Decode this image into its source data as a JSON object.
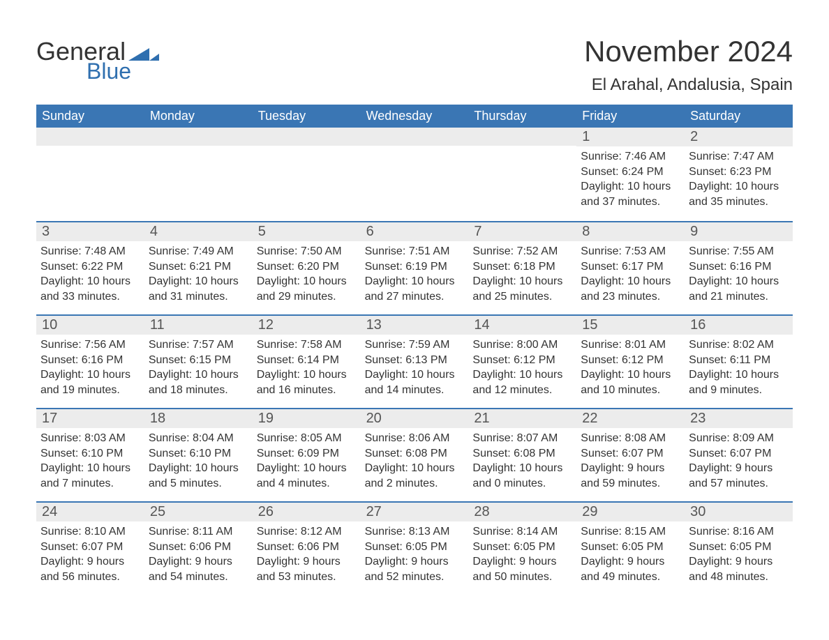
{
  "logo": {
    "word1": "General",
    "word2": "Blue",
    "tri_color": "#2f6faf"
  },
  "title": "November 2024",
  "location": "El Arahal, Andalusia, Spain",
  "colors": {
    "header_bg": "#3a76b4",
    "header_text": "#ffffff",
    "daynum_bg": "#ececec",
    "row_border": "#3a76b4",
    "body_text": "#333333",
    "logo_blue": "#2f6faf"
  },
  "weekdays": [
    "Sunday",
    "Monday",
    "Tuesday",
    "Wednesday",
    "Thursday",
    "Friday",
    "Saturday"
  ],
  "weeks": [
    [
      {
        "empty": true
      },
      {
        "empty": true
      },
      {
        "empty": true
      },
      {
        "empty": true
      },
      {
        "empty": true
      },
      {
        "day": "1",
        "sunrise": "Sunrise: 7:46 AM",
        "sunset": "Sunset: 6:24 PM",
        "dl1": "Daylight: 10 hours",
        "dl2": "and 37 minutes."
      },
      {
        "day": "2",
        "sunrise": "Sunrise: 7:47 AM",
        "sunset": "Sunset: 6:23 PM",
        "dl1": "Daylight: 10 hours",
        "dl2": "and 35 minutes."
      }
    ],
    [
      {
        "day": "3",
        "sunrise": "Sunrise: 7:48 AM",
        "sunset": "Sunset: 6:22 PM",
        "dl1": "Daylight: 10 hours",
        "dl2": "and 33 minutes."
      },
      {
        "day": "4",
        "sunrise": "Sunrise: 7:49 AM",
        "sunset": "Sunset: 6:21 PM",
        "dl1": "Daylight: 10 hours",
        "dl2": "and 31 minutes."
      },
      {
        "day": "5",
        "sunrise": "Sunrise: 7:50 AM",
        "sunset": "Sunset: 6:20 PM",
        "dl1": "Daylight: 10 hours",
        "dl2": "and 29 minutes."
      },
      {
        "day": "6",
        "sunrise": "Sunrise: 7:51 AM",
        "sunset": "Sunset: 6:19 PM",
        "dl1": "Daylight: 10 hours",
        "dl2": "and 27 minutes."
      },
      {
        "day": "7",
        "sunrise": "Sunrise: 7:52 AM",
        "sunset": "Sunset: 6:18 PM",
        "dl1": "Daylight: 10 hours",
        "dl2": "and 25 minutes."
      },
      {
        "day": "8",
        "sunrise": "Sunrise: 7:53 AM",
        "sunset": "Sunset: 6:17 PM",
        "dl1": "Daylight: 10 hours",
        "dl2": "and 23 minutes."
      },
      {
        "day": "9",
        "sunrise": "Sunrise: 7:55 AM",
        "sunset": "Sunset: 6:16 PM",
        "dl1": "Daylight: 10 hours",
        "dl2": "and 21 minutes."
      }
    ],
    [
      {
        "day": "10",
        "sunrise": "Sunrise: 7:56 AM",
        "sunset": "Sunset: 6:16 PM",
        "dl1": "Daylight: 10 hours",
        "dl2": "and 19 minutes."
      },
      {
        "day": "11",
        "sunrise": "Sunrise: 7:57 AM",
        "sunset": "Sunset: 6:15 PM",
        "dl1": "Daylight: 10 hours",
        "dl2": "and 18 minutes."
      },
      {
        "day": "12",
        "sunrise": "Sunrise: 7:58 AM",
        "sunset": "Sunset: 6:14 PM",
        "dl1": "Daylight: 10 hours",
        "dl2": "and 16 minutes."
      },
      {
        "day": "13",
        "sunrise": "Sunrise: 7:59 AM",
        "sunset": "Sunset: 6:13 PM",
        "dl1": "Daylight: 10 hours",
        "dl2": "and 14 minutes."
      },
      {
        "day": "14",
        "sunrise": "Sunrise: 8:00 AM",
        "sunset": "Sunset: 6:12 PM",
        "dl1": "Daylight: 10 hours",
        "dl2": "and 12 minutes."
      },
      {
        "day": "15",
        "sunrise": "Sunrise: 8:01 AM",
        "sunset": "Sunset: 6:12 PM",
        "dl1": "Daylight: 10 hours",
        "dl2": "and 10 minutes."
      },
      {
        "day": "16",
        "sunrise": "Sunrise: 8:02 AM",
        "sunset": "Sunset: 6:11 PM",
        "dl1": "Daylight: 10 hours",
        "dl2": "and 9 minutes."
      }
    ],
    [
      {
        "day": "17",
        "sunrise": "Sunrise: 8:03 AM",
        "sunset": "Sunset: 6:10 PM",
        "dl1": "Daylight: 10 hours",
        "dl2": "and 7 minutes."
      },
      {
        "day": "18",
        "sunrise": "Sunrise: 8:04 AM",
        "sunset": "Sunset: 6:10 PM",
        "dl1": "Daylight: 10 hours",
        "dl2": "and 5 minutes."
      },
      {
        "day": "19",
        "sunrise": "Sunrise: 8:05 AM",
        "sunset": "Sunset: 6:09 PM",
        "dl1": "Daylight: 10 hours",
        "dl2": "and 4 minutes."
      },
      {
        "day": "20",
        "sunrise": "Sunrise: 8:06 AM",
        "sunset": "Sunset: 6:08 PM",
        "dl1": "Daylight: 10 hours",
        "dl2": "and 2 minutes."
      },
      {
        "day": "21",
        "sunrise": "Sunrise: 8:07 AM",
        "sunset": "Sunset: 6:08 PM",
        "dl1": "Daylight: 10 hours",
        "dl2": "and 0 minutes."
      },
      {
        "day": "22",
        "sunrise": "Sunrise: 8:08 AM",
        "sunset": "Sunset: 6:07 PM",
        "dl1": "Daylight: 9 hours",
        "dl2": "and 59 minutes."
      },
      {
        "day": "23",
        "sunrise": "Sunrise: 8:09 AM",
        "sunset": "Sunset: 6:07 PM",
        "dl1": "Daylight: 9 hours",
        "dl2": "and 57 minutes."
      }
    ],
    [
      {
        "day": "24",
        "sunrise": "Sunrise: 8:10 AM",
        "sunset": "Sunset: 6:07 PM",
        "dl1": "Daylight: 9 hours",
        "dl2": "and 56 minutes."
      },
      {
        "day": "25",
        "sunrise": "Sunrise: 8:11 AM",
        "sunset": "Sunset: 6:06 PM",
        "dl1": "Daylight: 9 hours",
        "dl2": "and 54 minutes."
      },
      {
        "day": "26",
        "sunrise": "Sunrise: 8:12 AM",
        "sunset": "Sunset: 6:06 PM",
        "dl1": "Daylight: 9 hours",
        "dl2": "and 53 minutes."
      },
      {
        "day": "27",
        "sunrise": "Sunrise: 8:13 AM",
        "sunset": "Sunset: 6:05 PM",
        "dl1": "Daylight: 9 hours",
        "dl2": "and 52 minutes."
      },
      {
        "day": "28",
        "sunrise": "Sunrise: 8:14 AM",
        "sunset": "Sunset: 6:05 PM",
        "dl1": "Daylight: 9 hours",
        "dl2": "and 50 minutes."
      },
      {
        "day": "29",
        "sunrise": "Sunrise: 8:15 AM",
        "sunset": "Sunset: 6:05 PM",
        "dl1": "Daylight: 9 hours",
        "dl2": "and 49 minutes."
      },
      {
        "day": "30",
        "sunrise": "Sunrise: 8:16 AM",
        "sunset": "Sunset: 6:05 PM",
        "dl1": "Daylight: 9 hours",
        "dl2": "and 48 minutes."
      }
    ]
  ]
}
